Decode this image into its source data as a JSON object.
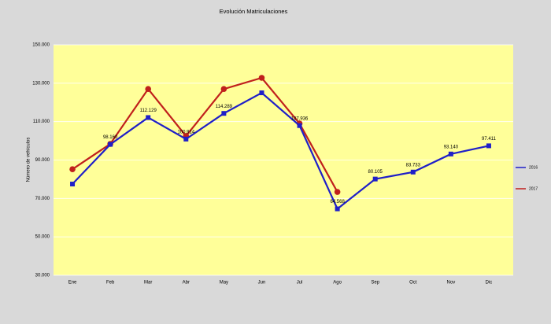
{
  "chart_data": {
    "type": "line",
    "title": "Evolución  Matriculaciones",
    "y_label": "Número de vehículos",
    "categories": [
      "Ene",
      "Feb",
      "Mar",
      "Abr",
      "May",
      "Jun",
      "Jul",
      "Ago",
      "Sep",
      "Oct",
      "Nov",
      "Dic"
    ],
    "series": [
      {
        "name": "2016",
        "color": "#1f1fc8",
        "marker": "square",
        "values": [
          77500,
          98160,
          112129,
          100914,
          114289,
          125000,
          107936,
          64568,
          80105,
          83733,
          93140,
          97411
        ],
        "value_labels": [
          null,
          "98.160",
          "112.129",
          "100.914",
          "114.289",
          null,
          "107.936",
          "64.568",
          "80.105",
          "83.733",
          "93.140",
          "97.411"
        ]
      },
      {
        "name": "2017",
        "color": "#c0201c",
        "marker": "circle",
        "values": [
          85200,
          98400,
          127000,
          102500,
          127000,
          132800,
          109000,
          73400,
          null,
          null,
          null,
          null
        ]
      }
    ],
    "ylim": [
      30000,
      150000
    ],
    "yticks": [
      {
        "value": 30000,
        "label": "30.000"
      },
      {
        "value": 50000,
        "label": "50.000"
      },
      {
        "value": 70000,
        "label": "70.000"
      },
      {
        "value": 90000,
        "label": "90.000"
      },
      {
        "value": 110000,
        "label": "110.000"
      },
      {
        "value": 130000,
        "label": "130.000"
      },
      {
        "value": 150000,
        "label": "150.000"
      }
    ],
    "grid": true,
    "legend": "right"
  }
}
